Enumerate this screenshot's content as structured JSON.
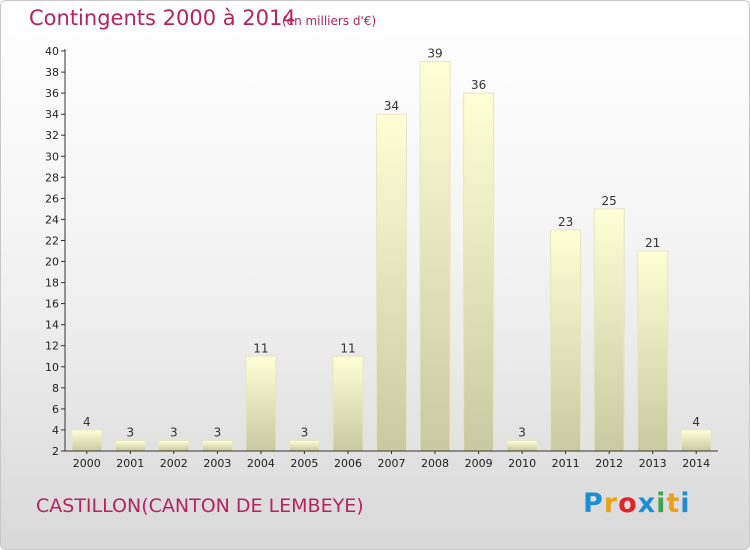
{
  "header": {
    "title": "Contingents 2000 à 2014",
    "subtitle": "(en milliers d'€)"
  },
  "footer": {
    "location": "CASTILLON(CANTON DE LEMBEYE)",
    "logo": {
      "letters": [
        "P",
        "r",
        "o",
        "x",
        "i",
        "t",
        "i"
      ],
      "colors": [
        "#1a8fd8",
        "#e8a21e",
        "#e2232a",
        "#1a8fd8",
        "#3aa84a",
        "#e8a21e",
        "#1a8fd8"
      ]
    }
  },
  "colors": {
    "bar_top": "#ffffd6",
    "bar_bottom": "#c9c9a2",
    "bar_stroke": "#e6e6c4",
    "axis": "#333333",
    "title": "#b5245f"
  },
  "chart_data": {
    "type": "bar",
    "title": "Contingents 2000 à 2014",
    "subtitle": "(en milliers d'€)",
    "categories": [
      "2000",
      "2001",
      "2002",
      "2003",
      "2004",
      "2005",
      "2006",
      "2007",
      "2008",
      "2009",
      "2010",
      "2011",
      "2012",
      "2013",
      "2014"
    ],
    "values": [
      4,
      3,
      3,
      3,
      11,
      3,
      11,
      34,
      39,
      36,
      3,
      23,
      25,
      21,
      4
    ],
    "ylim": [
      2,
      40
    ],
    "yticks": [
      2,
      4,
      6,
      8,
      10,
      12,
      14,
      16,
      18,
      20,
      22,
      24,
      26,
      28,
      30,
      32,
      34,
      36,
      38,
      40
    ],
    "grid": false,
    "data_labels": true
  }
}
